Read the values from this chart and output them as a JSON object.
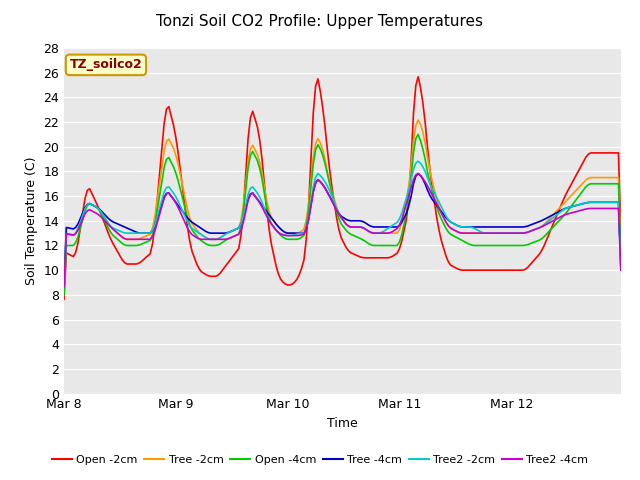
{
  "title": "Tonzi Soil CO2 Profile: Upper Temperatures",
  "xlabel": "Time",
  "ylabel": "Soil Temperature (C)",
  "ylim": [
    0,
    28
  ],
  "yticks": [
    0,
    2,
    4,
    6,
    8,
    10,
    12,
    14,
    16,
    18,
    20,
    22,
    24,
    26,
    28
  ],
  "bg_color": "#e8e8e8",
  "legend_label": "TZ_soilco2",
  "series_colors": {
    "Open -2cm": "#ff0000",
    "Tree -2cm": "#ff9900",
    "Open -4cm": "#00cc00",
    "Tree -4cm": "#0000cc",
    "Tree2 -2cm": "#00cccc",
    "Tree2 -4cm": "#cc00cc"
  },
  "x_tick_labels": [
    "Mar 8",
    "Mar 9",
    "Mar 10",
    "Mar 11",
    "Mar 12"
  ],
  "x_tick_positions": [
    0,
    48,
    96,
    144,
    192
  ]
}
